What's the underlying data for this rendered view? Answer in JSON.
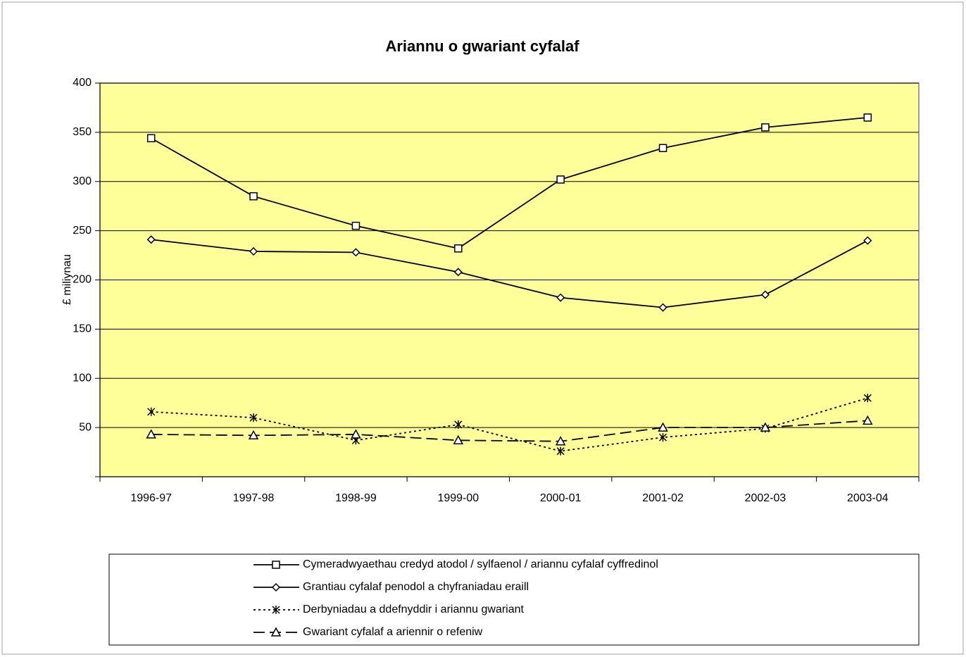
{
  "chart_data": {
    "type": "line",
    "title": "Ariannu o gwariant cyfalaf",
    "ylabel": "£ miliynau",
    "categories": [
      "1996-97",
      "1997-98",
      "1998-99",
      "1999-00",
      "2000-01",
      "2001-02",
      "2002-03",
      "2003-04"
    ],
    "series": [
      {
        "name": "Cymeradwyaethau credyd atodol / sylfaenol / ariannu cyfalaf cyffredinol",
        "color": "#000000",
        "marker": "square",
        "dash": "solid",
        "values": [
          344,
          285,
          255,
          232,
          302,
          334,
          355,
          365
        ]
      },
      {
        "name": "Grantiau cyfalaf penodol a chyfraniadau eraill",
        "color": "#000000",
        "marker": "diamond",
        "dash": "solid",
        "values": [
          241,
          229,
          228,
          208,
          182,
          172,
          185,
          240
        ]
      },
      {
        "name": "Derbyniadau a ddefnyddir i ariannu gwariant",
        "color": "#000000",
        "marker": "star",
        "dash": "dotted",
        "values": [
          66,
          60,
          37,
          53,
          26,
          40,
          49,
          80
        ]
      },
      {
        "name": "Gwariant cyfalaf a ariennir o refeniw",
        "color": "#000000",
        "marker": "triangle",
        "dash": "dashed",
        "values": [
          43,
          42,
          43,
          37,
          36,
          50,
          50,
          57
        ]
      }
    ],
    "ylim": [
      0,
      400
    ],
    "yticks": [
      50,
      100,
      150,
      200,
      250,
      300,
      350,
      400
    ],
    "grid": true,
    "legend": "bottom",
    "plot_background": "#ffff99"
  }
}
